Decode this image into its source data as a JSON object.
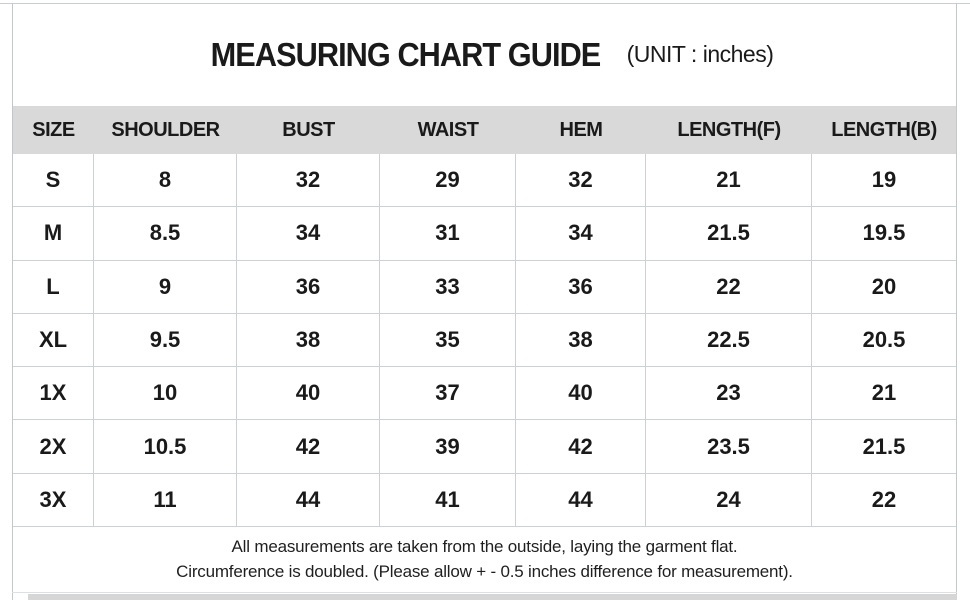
{
  "title": {
    "main": "MEASURING CHART GUIDE",
    "unit": "(UNIT : inches)"
  },
  "table": {
    "columns": [
      "SIZE",
      "SHOULDER",
      "BUST",
      "WAIST",
      "HEM",
      "LENGTH(F)",
      "LENGTH(B)"
    ],
    "rows": [
      {
        "size": "S",
        "values": [
          "8",
          "32",
          "29",
          "32",
          "21",
          "19"
        ]
      },
      {
        "size": "M",
        "values": [
          "8.5",
          "34",
          "31",
          "34",
          "21.5",
          "19.5"
        ]
      },
      {
        "size": "L",
        "values": [
          "9",
          "36",
          "33",
          "36",
          "22",
          "20"
        ]
      },
      {
        "size": "XL",
        "values": [
          "9.5",
          "38",
          "35",
          "38",
          "22.5",
          "20.5"
        ]
      },
      {
        "size": "1X",
        "values": [
          "10",
          "40",
          "37",
          "40",
          "23",
          "21"
        ]
      },
      {
        "size": "2X",
        "values": [
          "10.5",
          "42",
          "39",
          "42",
          "23.5",
          "21.5"
        ]
      },
      {
        "size": "3X",
        "values": [
          "11",
          "44",
          "41",
          "44",
          "24",
          "22"
        ]
      }
    ]
  },
  "footer": {
    "line1": "All measurements are taken from the outside, laying the garment flat.",
    "line2": "Circumference is doubled. (Please allow + - 0.5 inches difference for measurement)."
  },
  "colors": {
    "header_bg": "#d9d9d9",
    "grid_line": "#ccd1d5",
    "text": "#1a1a1a",
    "bottom_strip": "#d6d6d6"
  }
}
